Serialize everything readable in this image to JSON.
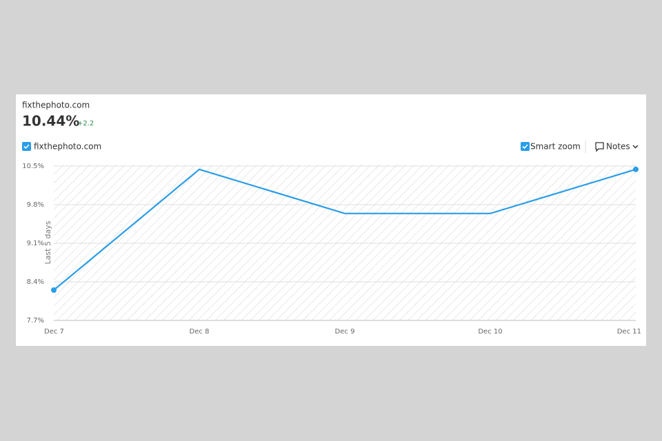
{
  "header": {
    "site": "fixthephoto.com",
    "metric": "10.44%",
    "change": "+2.2"
  },
  "controls": {
    "smart_zoom": "Smart zoom",
    "notes": "Notes"
  },
  "chart_data": {
    "type": "line",
    "y_axis_label": "Last 5 days",
    "categories": [
      "Dec 7",
      "Dec 8",
      "Dec 9",
      "Dec 10",
      "Dec 11"
    ],
    "series": [
      {
        "name": "fixthephoto.com",
        "color": "#2a9de8",
        "values": [
          8.25,
          10.44,
          9.64,
          9.64,
          10.44
        ]
      }
    ],
    "ylim": [
      7.7,
      10.5
    ],
    "yticks": [
      {
        "value": 7.7,
        "label": "7.7%"
      },
      {
        "value": 8.4,
        "label": "8.4%"
      },
      {
        "value": 9.1,
        "label": "9.1%"
      },
      {
        "value": 9.8,
        "label": "9.8%"
      },
      {
        "value": 10.5,
        "label": "10.5%"
      }
    ],
    "grid": true
  }
}
